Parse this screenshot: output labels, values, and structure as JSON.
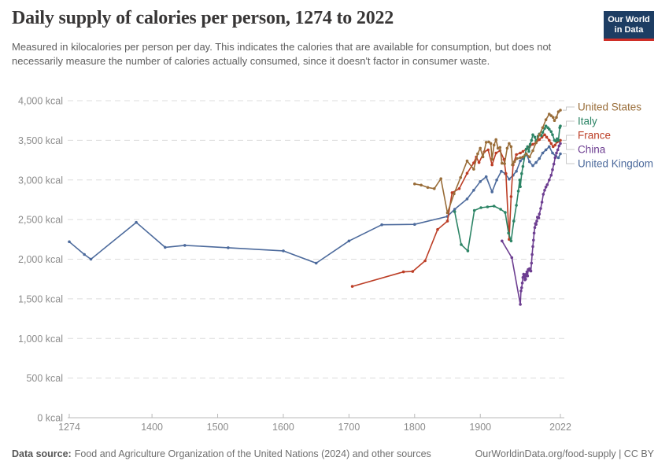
{
  "header": {
    "title": "Daily supply of calories per person, 1274 to 2022",
    "subtitle": "Measured in kilocalories per person per day. This indicates the calories that are available for consumption, but does not necessarily measure the number of calories actually consumed, since it doesn't factor in consumer waste.",
    "logo": {
      "line1": "Our World",
      "line2": "in Data",
      "bg": "#1d3d63",
      "accent": "#cf2e27"
    }
  },
  "chart_data": {
    "type": "line",
    "title": "Daily supply of calories per person, 1274 to 2022",
    "xlabel": "",
    "ylabel": "",
    "grid": true,
    "legend_position": "right",
    "xlim": [
      1274,
      2022
    ],
    "ylim": [
      0,
      4000
    ],
    "x_ticks": [
      1274,
      1400,
      1500,
      1600,
      1700,
      1800,
      1900,
      2022
    ],
    "y_ticks": [
      0,
      500,
      1000,
      1500,
      2000,
      2500,
      3000,
      3500,
      4000
    ],
    "y_unit": " kcal",
    "series": [
      {
        "name": "United Kingdom",
        "color": "#4C6A9C",
        "points": [
          [
            1274,
            2220
          ],
          [
            1297,
            2060
          ],
          [
            1307,
            2000
          ],
          [
            1376,
            2465
          ],
          [
            1420,
            2150
          ],
          [
            1450,
            2175
          ],
          [
            1516,
            2145
          ],
          [
            1600,
            2105
          ],
          [
            1650,
            1950
          ],
          [
            1700,
            2230
          ],
          [
            1750,
            2435
          ],
          [
            1800,
            2440
          ],
          [
            1850,
            2540
          ],
          [
            1861,
            2630
          ],
          [
            1880,
            2760
          ],
          [
            1890,
            2870
          ],
          [
            1900,
            2980
          ],
          [
            1909,
            3040
          ],
          [
            1918,
            2850
          ],
          [
            1925,
            3000
          ],
          [
            1932,
            3110
          ],
          [
            1938,
            3080
          ],
          [
            1944,
            3010
          ],
          [
            1950,
            3060
          ],
          [
            1955,
            3110
          ],
          [
            1961,
            3240
          ],
          [
            1965,
            3270
          ],
          [
            1970,
            3330
          ],
          [
            1975,
            3230
          ],
          [
            1980,
            3180
          ],
          [
            1985,
            3220
          ],
          [
            1990,
            3270
          ],
          [
            1995,
            3340
          ],
          [
            2000,
            3380
          ],
          [
            2005,
            3420
          ],
          [
            2010,
            3340
          ],
          [
            2015,
            3300
          ],
          [
            2019,
            3280
          ],
          [
            2022,
            3330
          ]
        ]
      },
      {
        "name": "France",
        "color": "#BC3E26",
        "points": [
          [
            1705,
            1657
          ],
          [
            1783,
            1840
          ],
          [
            1797,
            1845
          ],
          [
            1816,
            1980
          ],
          [
            1835,
            2375
          ],
          [
            1850,
            2480
          ],
          [
            1857,
            2840
          ],
          [
            1868,
            2890
          ],
          [
            1880,
            3085
          ],
          [
            1890,
            3215
          ],
          [
            1894,
            3290
          ],
          [
            1898,
            3220
          ],
          [
            1906,
            3355
          ],
          [
            1912,
            3380
          ],
          [
            1918,
            3190
          ],
          [
            1924,
            3340
          ],
          [
            1930,
            3370
          ],
          [
            1936,
            3260
          ],
          [
            1939,
            3080
          ],
          [
            1944,
            2250
          ],
          [
            1947,
            2790
          ],
          [
            1950,
            3190
          ],
          [
            1955,
            3320
          ],
          [
            1961,
            3340
          ],
          [
            1965,
            3360
          ],
          [
            1970,
            3390
          ],
          [
            1975,
            3420
          ],
          [
            1980,
            3450
          ],
          [
            1985,
            3470
          ],
          [
            1990,
            3510
          ],
          [
            1994,
            3540
          ],
          [
            1998,
            3570
          ],
          [
            2001,
            3540
          ],
          [
            2005,
            3500
          ],
          [
            2008,
            3460
          ],
          [
            2011,
            3420
          ],
          [
            2014,
            3440
          ],
          [
            2017,
            3480
          ],
          [
            2020,
            3490
          ],
          [
            2022,
            3500
          ]
        ]
      },
      {
        "name": "Italy",
        "color": "#2C8465",
        "points": [
          [
            1861,
            2600
          ],
          [
            1871,
            2185
          ],
          [
            1881,
            2105
          ],
          [
            1891,
            2615
          ],
          [
            1901,
            2650
          ],
          [
            1911,
            2660
          ],
          [
            1921,
            2670
          ],
          [
            1931,
            2630
          ],
          [
            1938,
            2590
          ],
          [
            1943,
            2330
          ],
          [
            1947,
            2230
          ],
          [
            1951,
            2480
          ],
          [
            1955,
            2680
          ],
          [
            1958,
            2860
          ],
          [
            1960,
            3000
          ],
          [
            1961,
            2915
          ],
          [
            1963,
            3080
          ],
          [
            1965,
            3170
          ],
          [
            1968,
            3310
          ],
          [
            1970,
            3390
          ],
          [
            1972,
            3420
          ],
          [
            1974,
            3360
          ],
          [
            1976,
            3450
          ],
          [
            1978,
            3500
          ],
          [
            1980,
            3570
          ],
          [
            1983,
            3540
          ],
          [
            1985,
            3490
          ],
          [
            1988,
            3550
          ],
          [
            1990,
            3580
          ],
          [
            1993,
            3560
          ],
          [
            1995,
            3600
          ],
          [
            1998,
            3650
          ],
          [
            2000,
            3680
          ],
          [
            2003,
            3660
          ],
          [
            2005,
            3640
          ],
          [
            2008,
            3610
          ],
          [
            2010,
            3570
          ],
          [
            2013,
            3500
          ],
          [
            2015,
            3490
          ],
          [
            2017,
            3520
          ],
          [
            2019,
            3500
          ],
          [
            2021,
            3660
          ],
          [
            2022,
            3680
          ]
        ]
      },
      {
        "name": "China",
        "color": "#6D3E91",
        "points": [
          [
            1933,
            2230
          ],
          [
            1948,
            2020
          ],
          [
            1961,
            1430
          ],
          [
            1962,
            1600
          ],
          [
            1963,
            1640
          ],
          [
            1964,
            1700
          ],
          [
            1965,
            1770
          ],
          [
            1966,
            1810
          ],
          [
            1967,
            1790
          ],
          [
            1968,
            1740
          ],
          [
            1969,
            1750
          ],
          [
            1970,
            1810
          ],
          [
            1971,
            1840
          ],
          [
            1972,
            1790
          ],
          [
            1973,
            1870
          ],
          [
            1974,
            1860
          ],
          [
            1975,
            1880
          ],
          [
            1976,
            1860
          ],
          [
            1977,
            1850
          ],
          [
            1978,
            1950
          ],
          [
            1979,
            2060
          ],
          [
            1980,
            2160
          ],
          [
            1981,
            2240
          ],
          [
            1982,
            2330
          ],
          [
            1983,
            2400
          ],
          [
            1984,
            2450
          ],
          [
            1985,
            2440
          ],
          [
            1986,
            2480
          ],
          [
            1987,
            2530
          ],
          [
            1989,
            2520
          ],
          [
            1990,
            2570
          ],
          [
            1992,
            2640
          ],
          [
            1994,
            2720
          ],
          [
            1996,
            2820
          ],
          [
            1998,
            2870
          ],
          [
            2000,
            2910
          ],
          [
            2002,
            2940
          ],
          [
            2005,
            3000
          ],
          [
            2008,
            3060
          ],
          [
            2010,
            3130
          ],
          [
            2012,
            3200
          ],
          [
            2014,
            3280
          ],
          [
            2016,
            3340
          ],
          [
            2018,
            3380
          ],
          [
            2020,
            3430
          ],
          [
            2022,
            3460
          ]
        ]
      },
      {
        "name": "United States",
        "color": "#996D39",
        "points": [
          [
            1800,
            2950
          ],
          [
            1810,
            2935
          ],
          [
            1820,
            2905
          ],
          [
            1830,
            2890
          ],
          [
            1840,
            3015
          ],
          [
            1850,
            2585
          ],
          [
            1860,
            2825
          ],
          [
            1870,
            3030
          ],
          [
            1880,
            3240
          ],
          [
            1890,
            3135
          ],
          [
            1896,
            3330
          ],
          [
            1900,
            3400
          ],
          [
            1904,
            3290
          ],
          [
            1909,
            3475
          ],
          [
            1913,
            3480
          ],
          [
            1916,
            3460
          ],
          [
            1918,
            3260
          ],
          [
            1921,
            3440
          ],
          [
            1924,
            3510
          ],
          [
            1927,
            3400
          ],
          [
            1930,
            3410
          ],
          [
            1933,
            3210
          ],
          [
            1937,
            3205
          ],
          [
            1941,
            3400
          ],
          [
            1944,
            3460
          ],
          [
            1947,
            3420
          ],
          [
            1949,
            3190
          ],
          [
            1952,
            3230
          ],
          [
            1956,
            3270
          ],
          [
            1961,
            3280
          ],
          [
            1965,
            3290
          ],
          [
            1970,
            3330
          ],
          [
            1975,
            3290
          ],
          [
            1980,
            3370
          ],
          [
            1985,
            3470
          ],
          [
            1990,
            3570
          ],
          [
            1995,
            3660
          ],
          [
            2000,
            3760
          ],
          [
            2005,
            3830
          ],
          [
            2008,
            3810
          ],
          [
            2011,
            3790
          ],
          [
            2013,
            3750
          ],
          [
            2016,
            3790
          ],
          [
            2019,
            3860
          ],
          [
            2022,
            3880
          ]
        ]
      }
    ],
    "legend": [
      {
        "label": "United States",
        "y": 136
      },
      {
        "label": "Italy",
        "y": 154
      },
      {
        "label": "France",
        "y": 172
      },
      {
        "label": "China",
        "y": 190
      },
      {
        "label": "United Kingdom",
        "y": 208
      }
    ]
  },
  "footer": {
    "source_label": "Data source:",
    "source_text": "Food and Agriculture Organization of the United Nations (2024) and other sources",
    "credit": "OurWorldinData.org/food-supply | CC BY"
  }
}
